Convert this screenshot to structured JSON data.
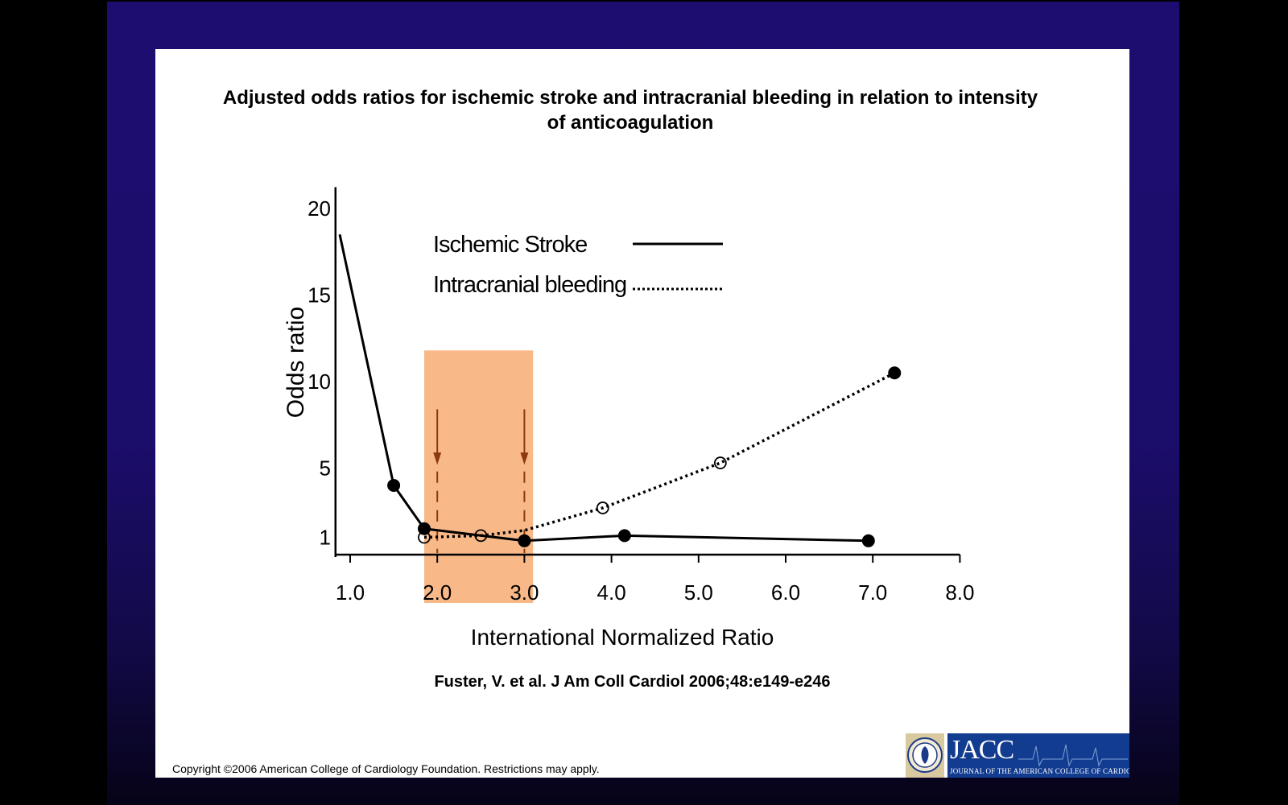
{
  "slide": {
    "title_line1": "Adjusted odds ratios for ischemic stroke and intracranial bleeding in relation to intensity",
    "title_line2": "of anticoagulation",
    "citation": "Fuster, V. et al. J Am Coll Cardiol 2006;48:e149-e246",
    "copyright": "Copyright ©2006 American College of Cardiology Foundation. Restrictions may apply.",
    "logo": {
      "name": "JACC",
      "subtitle": "JOURNAL OF THE AMERICAN COLLEGE OF CARDIOLOGY",
      "seal_icon": "acc-seal-icon",
      "ecg_icon": "ecg-trace-icon"
    }
  },
  "chart_data": {
    "type": "line",
    "title": "Adjusted odds ratios for ischemic stroke and intracranial bleeding in relation to intensity of anticoagulation",
    "xlabel": "International Normalized Ratio",
    "ylabel": "Odds ratio",
    "xlim": [
      0.85,
      8.0
    ],
    "ylim": [
      0,
      21
    ],
    "x_ticks": [
      "1.0",
      "2.0",
      "3.0",
      "4.0",
      "5.0",
      "6.0",
      "7.0",
      "8.0"
    ],
    "y_ticks": [
      "1",
      "5",
      "10",
      "15",
      "20"
    ],
    "y_tick_values": [
      1,
      5,
      10,
      15,
      20
    ],
    "series": [
      {
        "name": "Ischemic Stroke",
        "style": "solid",
        "color": "#000000",
        "points": [
          {
            "x": 0.88,
            "y": 18.5,
            "marker": "none"
          },
          {
            "x": 1.5,
            "y": 4.0,
            "marker": "filled"
          },
          {
            "x": 1.85,
            "y": 1.5,
            "marker": "filled"
          },
          {
            "x": 3.0,
            "y": 0.8,
            "marker": "filled"
          },
          {
            "x": 4.15,
            "y": 1.1,
            "marker": "filled"
          },
          {
            "x": 6.95,
            "y": 0.8,
            "marker": "filled"
          }
        ]
      },
      {
        "name": "Intracranial bleeding",
        "style": "dotted",
        "color": "#000000",
        "points": [
          {
            "x": 1.85,
            "y": 1.0,
            "marker": "open"
          },
          {
            "x": 2.5,
            "y": 1.1,
            "marker": "open"
          },
          {
            "x": 3.0,
            "y": 1.4,
            "marker": "none"
          },
          {
            "x": 3.9,
            "y": 2.7,
            "marker": "open"
          },
          {
            "x": 5.25,
            "y": 5.3,
            "marker": "open"
          },
          {
            "x": 7.25,
            "y": 10.5,
            "marker": "filled"
          }
        ]
      }
    ],
    "highlight_band": {
      "x_from": 1.85,
      "x_to": 3.1,
      "y_to": 11.8,
      "color": "#f9b888"
    },
    "arrows": [
      {
        "x": 2.0,
        "color": "#8b3a10"
      },
      {
        "x": 3.0,
        "color": "#8b3a10"
      }
    ],
    "legend": {
      "placement": "top-center"
    },
    "grid": false
  }
}
